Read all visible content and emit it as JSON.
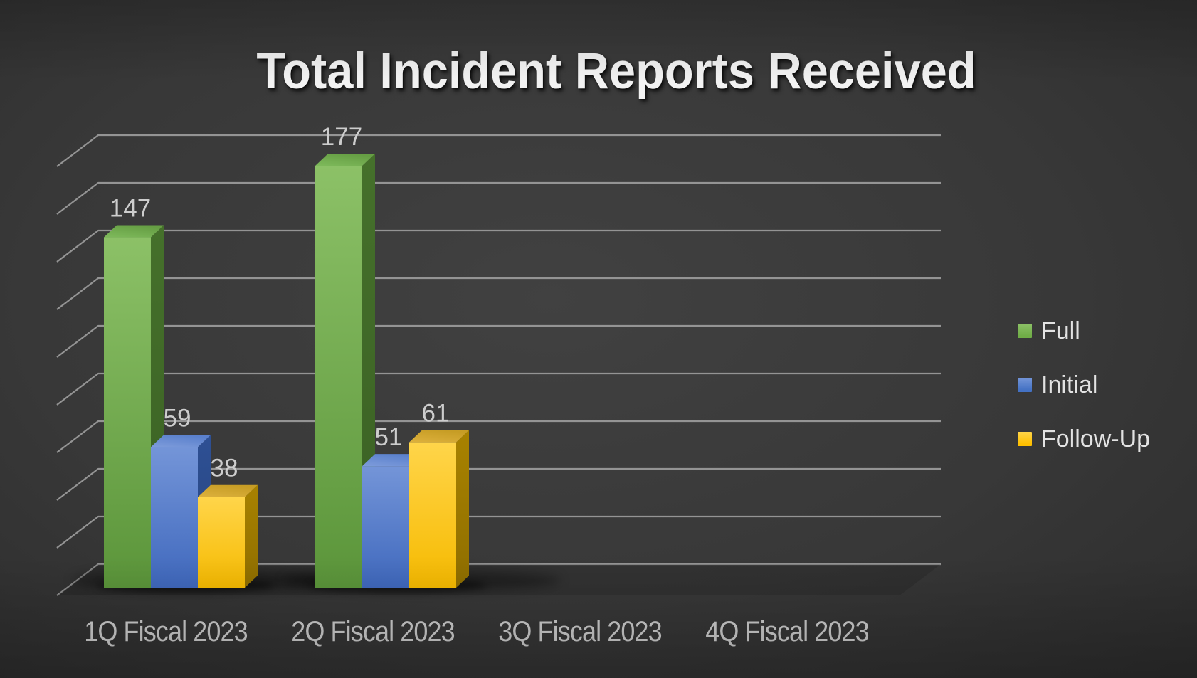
{
  "chart_data": {
    "type": "bar",
    "subtype": "3d-clustered-column",
    "title": "Total Incident Reports Received",
    "categories": [
      "1Q Fiscal 2023",
      "2Q Fiscal 2023",
      "3Q Fiscal 2023",
      "4Q Fiscal 2023"
    ],
    "series": [
      {
        "name": "Full",
        "color": "#70AD47",
        "values": [
          147,
          177,
          null,
          null
        ]
      },
      {
        "name": "Initial",
        "color": "#4472C4",
        "values": [
          59,
          51,
          null,
          null
        ]
      },
      {
        "name": "Follow-Up",
        "color": "#FFC000",
        "values": [
          38,
          61,
          null,
          null
        ]
      }
    ],
    "ylim": [
      0,
      180
    ],
    "gridline_interval": 20,
    "gridlines_visible": true,
    "y_axis_labels_visible": false,
    "data_labels_visible": true,
    "legend_position": "right",
    "theme": "dark"
  },
  "style": {
    "background_center": "#414141",
    "background_edge": "#1c1c1c",
    "gridline_color": "#9c9c9c",
    "title_color": "#f2f2f2",
    "value_label_color": "#cdcdcd",
    "category_label_color": "#cfcfcf",
    "legend_text_color": "#e3e3e3"
  }
}
